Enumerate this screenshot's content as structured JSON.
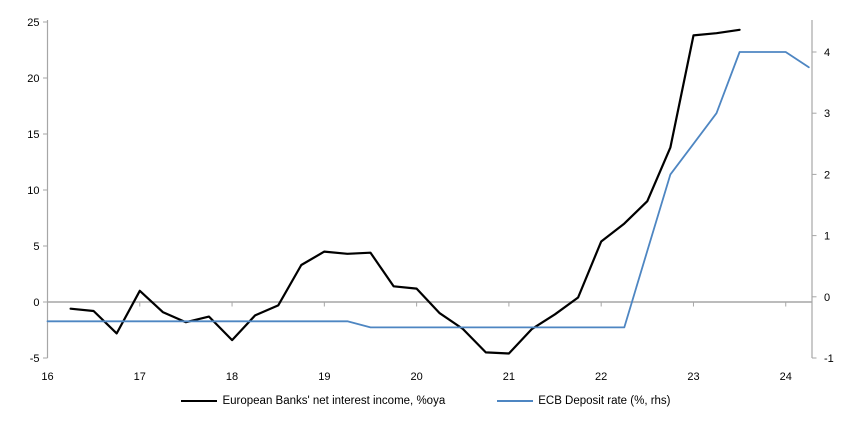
{
  "chart_data": {
    "type": "line",
    "title": "",
    "legend_position": "bottom",
    "grid": false,
    "zero_line": true,
    "x_axis": {
      "tick_labels": [
        "16",
        "17",
        "18",
        "19",
        "20",
        "21",
        "22",
        "23",
        "24"
      ],
      "tick_values": [
        16,
        17,
        18,
        19,
        20,
        21,
        22,
        23,
        24
      ],
      "range": [
        16,
        24.29
      ]
    },
    "left_axis": {
      "tick_labels": [
        "25",
        "20",
        "15",
        "10",
        "5",
        "0",
        "-5"
      ],
      "tick_values": [
        25,
        20,
        15,
        10,
        5,
        0,
        -5
      ],
      "range": [
        -5,
        25.36
      ]
    },
    "right_axis": {
      "tick_labels": [
        "4",
        "3",
        "2",
        "1",
        "0",
        "-1"
      ],
      "tick_values": [
        4,
        3,
        2,
        1,
        0,
        -1
      ],
      "range": [
        -1,
        4.56
      ]
    },
    "series": [
      {
        "name": "European Banks' net interest income, %oya",
        "axis": "left",
        "color": "#000000",
        "line_width": 2.2,
        "x": [
          16.25,
          16.5,
          16.75,
          17.0,
          17.25,
          17.5,
          17.75,
          18.0,
          18.25,
          18.5,
          18.75,
          19.0,
          19.25,
          19.5,
          19.75,
          20.0,
          20.25,
          20.5,
          20.75,
          21.0,
          21.25,
          21.5,
          21.75,
          22.0,
          22.25,
          22.5,
          22.75,
          23.0,
          23.25,
          23.5
        ],
        "values": [
          -0.6,
          -0.8,
          -2.8,
          1.0,
          -0.9,
          -1.8,
          -1.3,
          -3.4,
          -1.2,
          -0.3,
          3.3,
          4.5,
          4.3,
          4.4,
          1.4,
          1.2,
          -1.0,
          -2.4,
          -4.5,
          -4.6,
          -2.4,
          -1.1,
          0.4,
          5.4,
          7.0,
          9.0,
          13.8,
          23.8,
          24.0,
          24.3
        ]
      },
      {
        "name": "ECB Deposit rate (%, rhs)",
        "axis": "right",
        "color": "#4e86c2",
        "line_width": 1.8,
        "x": [
          16.0,
          16.25,
          16.5,
          16.75,
          17.0,
          17.25,
          17.5,
          17.75,
          18.0,
          18.25,
          18.5,
          18.75,
          19.0,
          19.25,
          19.5,
          19.75,
          20.0,
          20.25,
          20.5,
          20.75,
          21.0,
          21.25,
          21.5,
          21.75,
          22.0,
          22.25,
          22.5,
          22.75,
          23.0,
          23.25,
          23.5,
          23.75,
          24.0,
          24.25
        ],
        "values": [
          -0.4,
          -0.4,
          -0.4,
          -0.4,
          -0.4,
          -0.4,
          -0.4,
          -0.4,
          -0.4,
          -0.4,
          -0.4,
          -0.4,
          -0.4,
          -0.4,
          -0.5,
          -0.5,
          -0.5,
          -0.5,
          -0.5,
          -0.5,
          -0.5,
          -0.5,
          -0.5,
          -0.5,
          -0.5,
          -0.5,
          0.75,
          2.0,
          2.5,
          3.0,
          4.0,
          4.0,
          4.0,
          3.75
        ]
      }
    ],
    "colors": {
      "axis_line": "#a6a6a6",
      "zero_line": "#a6a6a6",
      "text": "#000000"
    }
  }
}
